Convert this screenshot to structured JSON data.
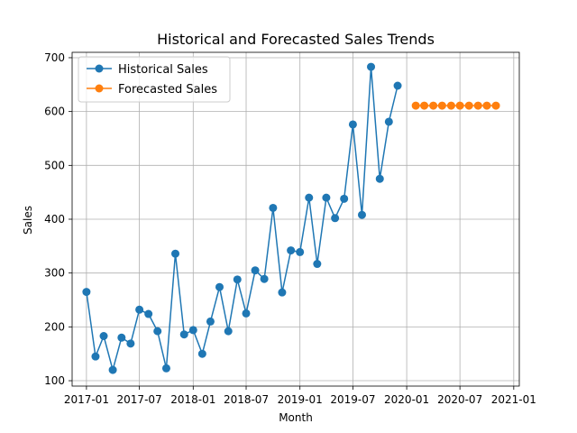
{
  "chart_data": {
    "type": "line",
    "title": "Historical and Forecasted Sales Trends",
    "xlabel": "Month",
    "ylabel": "Sales",
    "x_axis": {
      "type": "date",
      "range": [
        "2016-11-13",
        "2021-01-20"
      ],
      "ticks": [
        {
          "date": "2017-01-01",
          "label": "2017-01"
        },
        {
          "date": "2017-07-01",
          "label": "2017-07"
        },
        {
          "date": "2018-01-01",
          "label": "2018-01"
        },
        {
          "date": "2018-07-01",
          "label": "2018-07"
        },
        {
          "date": "2019-01-01",
          "label": "2019-01"
        },
        {
          "date": "2019-07-01",
          "label": "2019-07"
        },
        {
          "date": "2020-01-01",
          "label": "2020-01"
        },
        {
          "date": "2020-07-01",
          "label": "2020-07"
        },
        {
          "date": "2021-01-01",
          "label": "2021-01"
        }
      ]
    },
    "ylim": [
      90,
      710
    ],
    "yticks": [
      100,
      200,
      300,
      400,
      500,
      600,
      700
    ],
    "grid": true,
    "legend_position": "upper-left",
    "series": [
      {
        "name": "Historical Sales",
        "color": "#1f77b4",
        "marker": "circle",
        "points": [
          {
            "x": "2017-01-01",
            "y": 265
          },
          {
            "x": "2017-02-01",
            "y": 145
          },
          {
            "x": "2017-03-01",
            "y": 183
          },
          {
            "x": "2017-04-01",
            "y": 120
          },
          {
            "x": "2017-05-01",
            "y": 180
          },
          {
            "x": "2017-06-01",
            "y": 169
          },
          {
            "x": "2017-07-01",
            "y": 232
          },
          {
            "x": "2017-08-01",
            "y": 224
          },
          {
            "x": "2017-09-01",
            "y": 192
          },
          {
            "x": "2017-10-01",
            "y": 123
          },
          {
            "x": "2017-11-01",
            "y": 336
          },
          {
            "x": "2017-12-01",
            "y": 186
          },
          {
            "x": "2018-01-01",
            "y": 194
          },
          {
            "x": "2018-02-01",
            "y": 150
          },
          {
            "x": "2018-03-01",
            "y": 210
          },
          {
            "x": "2018-04-01",
            "y": 274
          },
          {
            "x": "2018-05-01",
            "y": 192
          },
          {
            "x": "2018-06-01",
            "y": 288
          },
          {
            "x": "2018-07-01",
            "y": 225
          },
          {
            "x": "2018-08-01",
            "y": 305
          },
          {
            "x": "2018-09-01",
            "y": 289
          },
          {
            "x": "2018-10-01",
            "y": 421
          },
          {
            "x": "2018-11-01",
            "y": 264
          },
          {
            "x": "2018-12-01",
            "y": 342
          },
          {
            "x": "2019-01-01",
            "y": 339
          },
          {
            "x": "2019-02-01",
            "y": 440
          },
          {
            "x": "2019-03-01",
            "y": 317
          },
          {
            "x": "2019-04-01",
            "y": 440
          },
          {
            "x": "2019-05-01",
            "y": 402
          },
          {
            "x": "2019-06-01",
            "y": 438
          },
          {
            "x": "2019-07-01",
            "y": 576
          },
          {
            "x": "2019-08-01",
            "y": 408
          },
          {
            "x": "2019-09-01",
            "y": 683
          },
          {
            "x": "2019-10-01",
            "y": 475
          },
          {
            "x": "2019-11-01",
            "y": 581
          },
          {
            "x": "2019-12-01",
            "y": 648
          }
        ]
      },
      {
        "name": "Forecasted Sales",
        "color": "#ff7f0e",
        "marker": "circle",
        "points": [
          {
            "x": "2020-02-01",
            "y": 611
          },
          {
            "x": "2020-03-01",
            "y": 611
          },
          {
            "x": "2020-04-01",
            "y": 611
          },
          {
            "x": "2020-05-01",
            "y": 611
          },
          {
            "x": "2020-06-01",
            "y": 611
          },
          {
            "x": "2020-07-01",
            "y": 611
          },
          {
            "x": "2020-08-01",
            "y": 611
          },
          {
            "x": "2020-09-01",
            "y": 611
          },
          {
            "x": "2020-10-01",
            "y": 611
          },
          {
            "x": "2020-11-01",
            "y": 611
          }
        ]
      }
    ]
  }
}
